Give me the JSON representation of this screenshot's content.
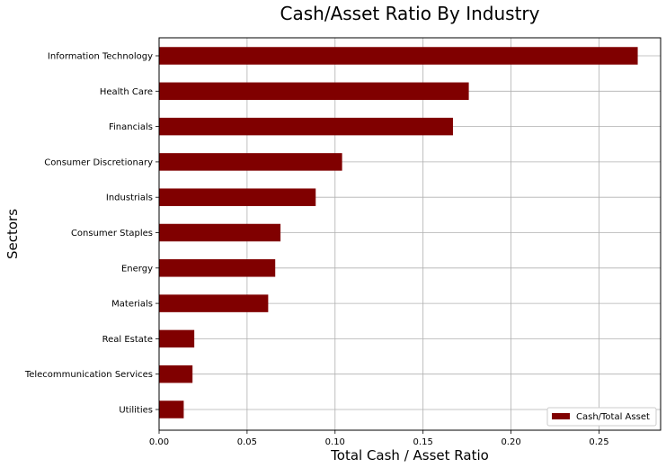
{
  "chart_data": {
    "type": "bar",
    "orientation": "horizontal",
    "title": "Cash/Asset Ratio By Industry",
    "xlabel": "Total Cash / Asset Ratio",
    "ylabel": "Sectors",
    "xlim": [
      0,
      0.285
    ],
    "xticks": [
      "0.00",
      "0.05",
      "0.10",
      "0.15",
      "0.20",
      "0.25"
    ],
    "grid": true,
    "legend": {
      "placement": "lower-right",
      "entries": [
        "Cash/Total Asset"
      ]
    },
    "bar_color": "#800000",
    "categories": [
      "Information Technology",
      "Health Care",
      "Financials",
      "Consumer Discretionary",
      "Industrials",
      "Consumer Staples",
      "Energy",
      "Materials",
      "Real Estate",
      "Telecommunication Services",
      "Utilities"
    ],
    "series": [
      {
        "name": "Cash/Total Asset",
        "values": [
          0.272,
          0.176,
          0.167,
          0.104,
          0.089,
          0.069,
          0.066,
          0.062,
          0.02,
          0.019,
          0.014
        ]
      }
    ]
  }
}
